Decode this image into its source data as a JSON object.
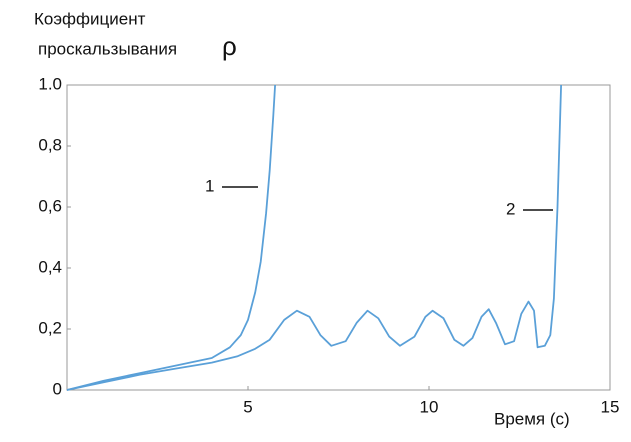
{
  "chart_data": {
    "type": "line",
    "title_lines": [
      "Коэффициент",
      "проскальзывания"
    ],
    "title_symbol": "ρ",
    "x_label": "Время (с)",
    "xlim": [
      0,
      15
    ],
    "xticks": [
      5,
      10,
      15
    ],
    "ylim": [
      0,
      1
    ],
    "yticks": [
      0,
      {
        "value": 0.2,
        "label": "0,2"
      },
      {
        "value": 0.4,
        "label": "0,4"
      },
      {
        "value": 0.6,
        "label": "0,6"
      },
      {
        "value": 0.8,
        "label": "0,8"
      },
      {
        "value": 1,
        "label": "1.0"
      }
    ],
    "series": [
      {
        "label": "1",
        "color": "#5aa0d8",
        "x": [
          0,
          1,
          2,
          3,
          4,
          4.5,
          4.8,
          5.0,
          5.2,
          5.35,
          5.5,
          5.6,
          5.7,
          5.75
        ],
        "values": [
          0,
          0.03,
          0.055,
          0.08,
          0.105,
          0.14,
          0.18,
          0.23,
          0.32,
          0.42,
          0.58,
          0.72,
          0.9,
          1.0
        ]
      },
      {
        "label": "2",
        "color": "#5aa0d8",
        "x": [
          0,
          1,
          2,
          3,
          4,
          4.7,
          5.2,
          5.6,
          6.0,
          6.35,
          6.7,
          7.0,
          7.3,
          7.7,
          8.0,
          8.3,
          8.6,
          8.9,
          9.2,
          9.6,
          9.9,
          10.1,
          10.4,
          10.7,
          10.95,
          11.2,
          11.45,
          11.65,
          11.85,
          12.1,
          12.35,
          12.55,
          12.75,
          12.9,
          13.0,
          13.2,
          13.35,
          13.45,
          13.55,
          13.6,
          13.65
        ],
        "values": [
          0,
          0.025,
          0.05,
          0.07,
          0.09,
          0.11,
          0.135,
          0.165,
          0.23,
          0.26,
          0.24,
          0.18,
          0.145,
          0.16,
          0.22,
          0.26,
          0.235,
          0.175,
          0.145,
          0.175,
          0.24,
          0.26,
          0.235,
          0.165,
          0.145,
          0.17,
          0.24,
          0.265,
          0.22,
          0.15,
          0.16,
          0.25,
          0.29,
          0.26,
          0.14,
          0.145,
          0.18,
          0.3,
          0.6,
          0.8,
          1.0
        ]
      }
    ]
  }
}
